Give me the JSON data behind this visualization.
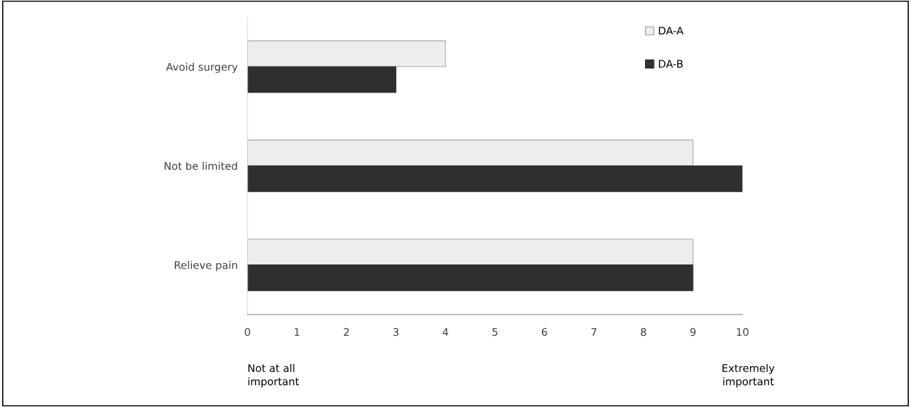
{
  "chart_data": {
    "type": "bar",
    "orientation": "horizontal",
    "categories": [
      "Avoid surgery",
      "Not be limited",
      "Relieve pain"
    ],
    "series": [
      {
        "name": "DA-A",
        "color": "#ededed",
        "values": [
          4,
          9,
          9
        ]
      },
      {
        "name": "DA-B",
        "color": "#2f2f2f",
        "values": [
          3,
          10,
          9
        ]
      }
    ],
    "xlim": [
      0,
      10
    ],
    "xticks": [
      0,
      1,
      2,
      3,
      4,
      5,
      6,
      7,
      8,
      9,
      10
    ],
    "grid": false,
    "legend": "top right",
    "annotations": [
      "Not at all\nimportant",
      "Extremely\nimportant"
    ]
  }
}
